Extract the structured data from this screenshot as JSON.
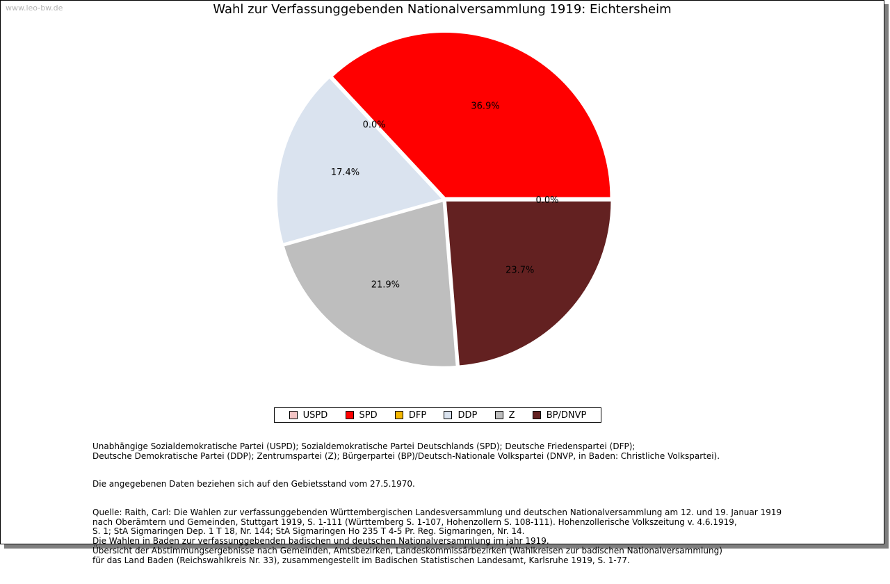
{
  "watermark": "www.leo-bw.de",
  "colors": {
    "USPD": "#f4c4c4",
    "SPD": "#ff0000",
    "DFP": "#f5b800",
    "DDP": "#dae3ef",
    "Z": "#bebebe",
    "BP/DNVP": "#632121"
  },
  "chart_data": {
    "type": "pie",
    "title": "Wahl zur Verfassunggebenden Nationalversammlung 1919: Eichtersheim",
    "slices": [
      {
        "name": "USPD",
        "value": 0.0,
        "label": "0.0%"
      },
      {
        "name": "SPD",
        "value": 36.9,
        "label": "36.9%"
      },
      {
        "name": "DFP",
        "value": 0.0,
        "label": "0.0%"
      },
      {
        "name": "DDP",
        "value": 17.4,
        "label": "17.4%"
      },
      {
        "name": "Z",
        "value": 21.9,
        "label": "21.9%"
      },
      {
        "name": "BP/DNVP",
        "value": 23.7,
        "label": "23.7%"
      }
    ],
    "legend": [
      "USPD",
      "SPD",
      "DFP",
      "DDP",
      "Z",
      "BP/DNVP"
    ],
    "legend_position": "bottom"
  },
  "notes": {
    "parties": "Unabhängige Sozialdemokratische Partei (USPD); Sozialdemokratische Partei Deutschlands (SPD); Deutsche Friedenspartei (DFP);\nDeutsche Demokratische Partei (DDP); Zentrumspartei (Z); Bürgerpartei (BP)/Deutsch-Nationale Volkspartei (DNVP, in Baden: Christliche Volkspartei).",
    "territory": "Die angegebenen Daten beziehen sich auf den Gebietsstand vom 27.5.1970.",
    "source": "Quelle: Raith, Carl: Die Wahlen zur verfassunggebenden Württembergischen Landesversammlung und deutschen Nationalversammlung am 12. und 19. Januar 1919\nnach Oberämtern und Gemeinden, Stuttgart 1919, S. 1-111 (Württemberg S. 1-107, Hohenzollern S. 108-111). Hohenzollerische Volkszeitung v. 4.6.1919,\nS. 1; StA Sigmaringen Dep. 1 T 18, Nr. 144; StA Sigmaringen Ho 235 T 4-5 Pr. Reg. Sigmaringen, Nr. 14.\nDie Wahlen in Baden zur verfassunggebenden badischen und deutschen Nationalversammlung im jahr 1919.\nÜbersicht der Abstimmungsergebnisse nach Gemeinden, Amtsbezirken, Landeskommissärbezirken (Wahlkreisen zur badischen Nationalversammlung)\nfür das Land Baden (Reichswahlkreis Nr. 33), zusammengestellt im Badischen Statistischen Landesamt, Karlsruhe 1919, S. 1-77."
  }
}
